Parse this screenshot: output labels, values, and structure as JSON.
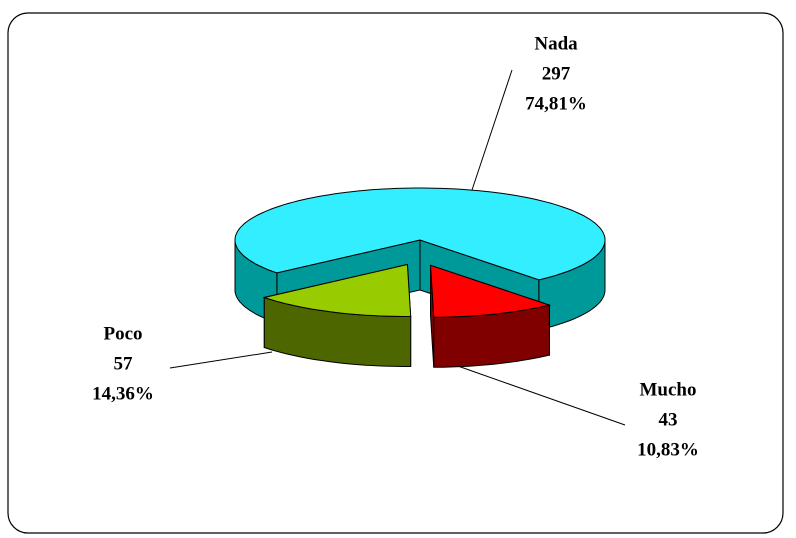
{
  "chart_data": {
    "type": "pie3d",
    "categories": [
      "Nada",
      "Mucho",
      "Poco"
    ],
    "values": [
      297,
      43,
      57
    ],
    "percentages": [
      74.81,
      10.83,
      14.36
    ],
    "percentage_labels": [
      "74,81%",
      "10,83%",
      "14,36%"
    ],
    "colors": [
      "#33eeff",
      "#ff0000",
      "#99cc00"
    ],
    "side_colors": [
      "#009999",
      "#800000",
      "#4d6600"
    ]
  }
}
